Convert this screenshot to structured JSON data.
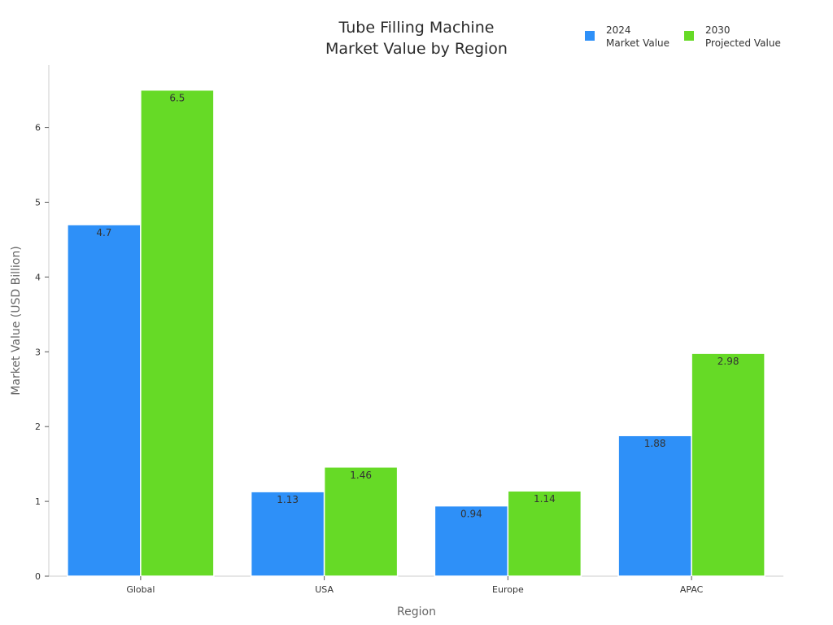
{
  "chart_data": {
    "type": "bar",
    "title": [
      "Tube Filling Machine",
      "Market Value by Region"
    ],
    "xlabel": "Region",
    "ylabel": "Market Value (USD Billion)",
    "categories": [
      "Global",
      "USA",
      "Europe",
      "APAC"
    ],
    "series": [
      {
        "name": [
          "2024",
          "Market Value"
        ],
        "values": [
          4.7,
          1.13,
          0.94,
          1.88
        ],
        "labels": [
          "4.7",
          "1.13",
          "0.94",
          "1.88"
        ],
        "color": "#2e90f8"
      },
      {
        "name": [
          "2030",
          "Projected Value"
        ],
        "values": [
          6.5,
          1.46,
          1.14,
          2.98
        ],
        "labels": [
          "6.5",
          "1.46",
          "1.14",
          "2.98"
        ],
        "color": "#66da26"
      }
    ],
    "ylim": [
      0,
      6.83
    ],
    "yticks": [
      0,
      1,
      2,
      3,
      4,
      5,
      6
    ],
    "grid": false,
    "legend_position": "top-right"
  }
}
